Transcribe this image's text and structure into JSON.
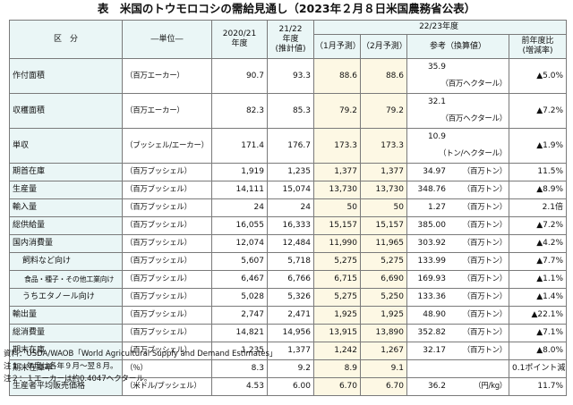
{
  "title": "表　米国のトウモロコシの需給見通し（2023年２月８日米国農務省公表）",
  "headers": {
    "category": "区　分",
    "unit": "―単位―",
    "y2020": "2020/21\n年度",
    "y2021": "21/22\n年度\n(推計値)",
    "y2022": "22/23年度",
    "jan": "（1月予測）",
    "feb": "（2月予測）",
    "ref": "参考（換算値）",
    "chg": "前年度比\n(増減率)"
  },
  "rows": [
    {
      "label": "作付面積",
      "unit": "（百万エーカー）",
      "y2020": "90.7",
      "y2021": "93.3",
      "jan": "88.6",
      "feb": "88.6",
      "ref": "35.9",
      "ref_unit": "（百万ヘクタール）",
      "chg": "▲5.0%"
    },
    {
      "label": "収穫面積",
      "unit": "（百万エーカー）",
      "y2020": "82.3",
      "y2021": "85.3",
      "jan": "79.2",
      "feb": "79.2",
      "ref": "32.1",
      "ref_unit": "（百万ヘクタール）",
      "chg": "▲7.2%"
    },
    {
      "label": "単収",
      "unit": "（ブッシェル/エーカー）",
      "y2020": "171.4",
      "y2021": "176.7",
      "jan": "173.3",
      "feb": "173.3",
      "ref": "10.9",
      "ref_unit": "（トン/ヘクタール）",
      "chg": "▲1.9%"
    },
    {
      "label": "期首在庫",
      "unit": "（百万ブッシェル）",
      "y2020": "1,919",
      "y2021": "1,235",
      "jan": "1,377",
      "feb": "1,377",
      "ref": "34.97",
      "ref_unit": "（百万トン）",
      "chg": "11.5%"
    },
    {
      "label": "生産量",
      "unit": "（百万ブッシェル）",
      "y2020": "14,111",
      "y2021": "15,074",
      "jan": "13,730",
      "feb": "13,730",
      "ref": "348.76",
      "ref_unit": "（百万トン）",
      "chg": "▲8.9%"
    },
    {
      "label": "輸入量",
      "unit": "（百万ブッシェル）",
      "y2020": "24",
      "y2021": "24",
      "jan": "50",
      "feb": "50",
      "ref": "1.27",
      "ref_unit": "（百万トン）",
      "chg": "2.1倍"
    },
    {
      "label": "総供給量",
      "unit": "（百万ブッシェル）",
      "y2020": "16,055",
      "y2021": "16,333",
      "jan": "15,157",
      "feb": "15,157",
      "ref": "385.00",
      "ref_unit": "（百万トン）",
      "chg": "▲7.2%"
    },
    {
      "label": "国内消費量",
      "unit": "（百万ブッシェル）",
      "y2020": "12,074",
      "y2021": "12,484",
      "jan": "11,990",
      "feb": "11,965",
      "ref": "303.92",
      "ref_unit": "（百万トン）",
      "chg": "▲4.2%"
    },
    {
      "label": "飼料など向け",
      "unit": "（百万ブッシェル）",
      "y2020": "5,607",
      "y2021": "5,718",
      "jan": "5,275",
      "feb": "5,275",
      "ref": "133.99",
      "ref_unit": "（百万トン）",
      "chg": "▲7.7%"
    },
    {
      "label": "食品・種子・その他工業向け",
      "unit": "（百万ブッシェル）",
      "y2020": "6,467",
      "y2021": "6,766",
      "jan": "6,715",
      "feb": "6,690",
      "ref": "169.93",
      "ref_unit": "（百万トン）",
      "chg": "▲1.1%"
    },
    {
      "label": "うちエタノール向け",
      "unit": "（百万ブッシェル）",
      "y2020": "5,028",
      "y2021": "5,326",
      "jan": "5,275",
      "feb": "5,250",
      "ref": "133.36",
      "ref_unit": "（百万トン）",
      "chg": "▲1.4%"
    },
    {
      "label": "輸出量",
      "unit": "（百万ブッシェル）",
      "y2020": "2,747",
      "y2021": "2,471",
      "jan": "1,925",
      "feb": "1,925",
      "ref": "48.90",
      "ref_unit": "（百万トン）",
      "chg": "▲22.1%"
    },
    {
      "label": "総消費量",
      "unit": "（百万ブッシェル）",
      "y2020": "14,821",
      "y2021": "14,956",
      "jan": "13,915",
      "feb": "13,890",
      "ref": "352.82",
      "ref_unit": "（百万トン）",
      "chg": "▲7.1%"
    },
    {
      "label": "期末在庫",
      "unit": "（百万ブッシェル）",
      "y2020": "1,235",
      "y2021": "1,377",
      "jan": "1,242",
      "feb": "1,267",
      "ref": "32.17",
      "ref_unit": "（百万トン）",
      "chg": "▲8.0%"
    },
    {
      "label": "期末在庫率",
      "unit": "（％）",
      "y2020": "8.3",
      "y2021": "9.2",
      "jan": "8.9",
      "feb": "9.1",
      "ref": "",
      "ref_unit": "",
      "chg": "0.1ポイント減"
    },
    {
      "label": "生産者平均販売価格",
      "unit": "（米ドル/ブッシェル）",
      "y2020": "4.53",
      "y2021": "6.00",
      "jan": "6.70",
      "feb": "6.70",
      "ref": "36.2",
      "ref_unit": "（円/kg）",
      "chg": "11.7%"
    }
  ],
  "notes": [
    "資料：USDA/WAOB「World Agricultural Supply and Demand Estimates」",
    "注１：年度は各年９月～翌８月。",
    "注２：１エーカーは約0.4047ヘクタール。"
  ]
}
